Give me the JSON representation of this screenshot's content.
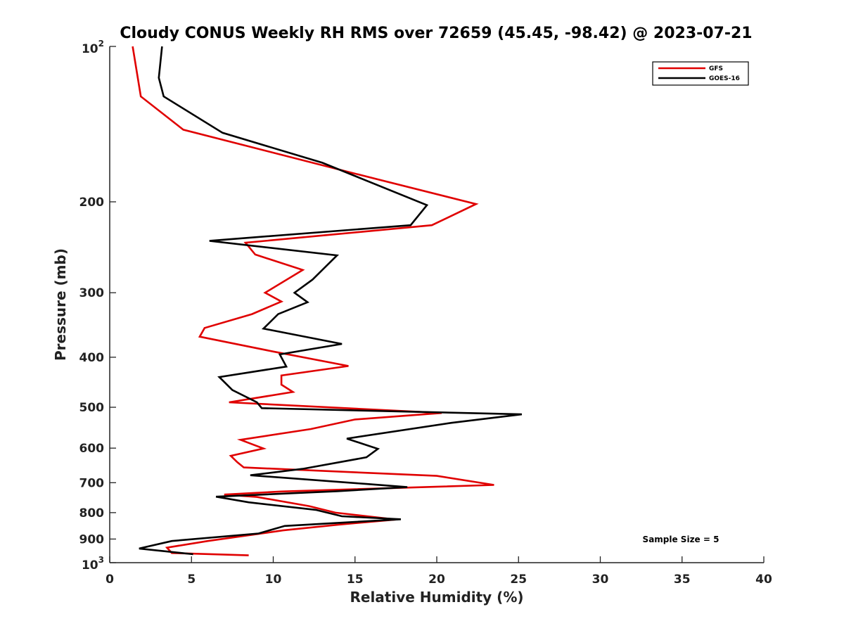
{
  "chart_data": {
    "type": "line",
    "title": "Cloudy CONUS Weekly RH RMS over 72659 (45.45, -98.42) @ 2023-07-21",
    "xlabel": "Relative Humidity (%)",
    "ylabel": "Pressure (mb)",
    "xlim": [
      0,
      40
    ],
    "ylim": [
      1000,
      100
    ],
    "y_scale": "log",
    "x_ticks": [
      "0",
      "5",
      "10",
      "15",
      "20",
      "25",
      "30",
      "35",
      "40"
    ],
    "y_ticks": [
      {
        "value": 100,
        "base": "10",
        "exp": "2"
      },
      {
        "value": 200,
        "label": "200"
      },
      {
        "value": 300,
        "label": "300"
      },
      {
        "value": 400,
        "label": "400"
      },
      {
        "value": 500,
        "label": "500"
      },
      {
        "value": 600,
        "label": "600"
      },
      {
        "value": 700,
        "label": "700"
      },
      {
        "value": 800,
        "label": "800"
      },
      {
        "value": 900,
        "label": "900"
      },
      {
        "value": 1000,
        "base": "10",
        "exp": "3"
      }
    ],
    "grid": false,
    "legend_position": "top-right",
    "annotation": "Sample Size = 5",
    "series": [
      {
        "name": "GFS",
        "color": "#e00000",
        "x": [
          1.4,
          1.9,
          4.5,
          15.5,
          22.4,
          19.7,
          8.3,
          8.9,
          11.8,
          9.5,
          10.5,
          8.7,
          5.8,
          5.5,
          10.0,
          14.6,
          10.5,
          10.5,
          11.2,
          7.3,
          20.3,
          15.0,
          12.3,
          8.0,
          9.4,
          7.4,
          7.8,
          8.2,
          20.0,
          23.5,
          10.5,
          7.0,
          9.0,
          12.2,
          13.8,
          17.5,
          14.0,
          10.6,
          8.6,
          6.0,
          3.5,
          3.8,
          8.5
        ],
        "y": [
          100,
          125,
          145,
          178,
          202,
          222,
          240,
          253,
          271,
          300,
          312,
          330,
          351,
          365,
          390,
          416,
          434,
          452,
          467,
          489,
          513,
          528,
          551,
          578,
          601,
          621,
          639,
          654,
          679,
          707,
          728,
          738,
          746,
          777,
          800,
          825,
          844,
          866,
          884,
          908,
          935,
          958,
          968
        ]
      },
      {
        "name": "GOES-16",
        "color": "#000000",
        "x": [
          3.2,
          3.0,
          3.3,
          6.9,
          13.0,
          19.4,
          18.4,
          6.1,
          13.9,
          12.4,
          11.3,
          12.1,
          10.3,
          9.4,
          14.2,
          10.4,
          10.8,
          6.7,
          7.5,
          9.0,
          9.3,
          25.2,
          20.9,
          14.5,
          16.4,
          15.7,
          11.8,
          8.6,
          15.7,
          18.2,
          13.9,
          6.5,
          8.5,
          12.6,
          14.2,
          17.8,
          10.7,
          9.1,
          3.8,
          1.8,
          5.1
        ],
        "y": [
          100,
          115,
          125,
          147,
          168,
          203,
          222,
          238,
          254,
          283,
          300,
          313,
          330,
          352,
          377,
          395,
          417,
          437,
          463,
          489,
          502,
          516,
          536,
          575,
          602,
          625,
          658,
          677,
          704,
          714,
          727,
          745,
          764,
          790,
          813,
          824,
          849,
          878,
          908,
          939,
          963
        ]
      }
    ]
  }
}
